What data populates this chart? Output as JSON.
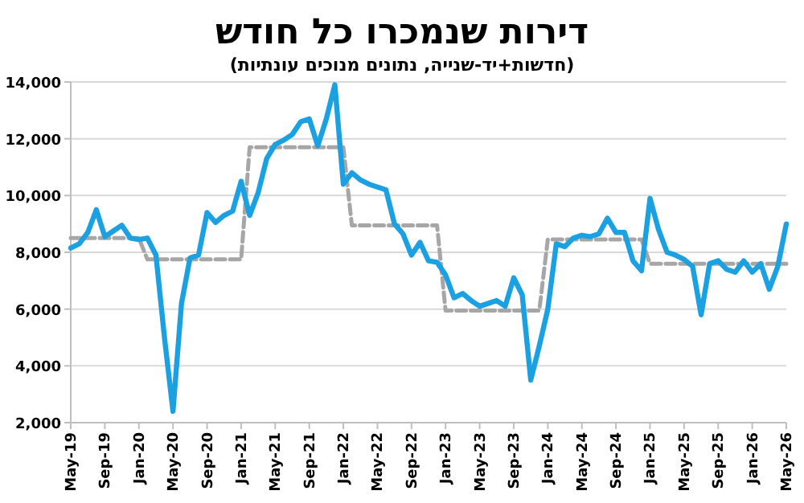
{
  "chart_data": {
    "type": "line",
    "title": "דירות שנמכרו כל חודש",
    "subtitle": "(חדשות+יד-שנייה, נתונים מנוכים עונתיות)",
    "categories": [
      "May-19",
      null,
      null,
      null,
      "Sep-19",
      null,
      null,
      null,
      "Jan-20",
      null,
      null,
      null,
      "May-20",
      null,
      null,
      null,
      "Sep-20",
      null,
      null,
      null,
      "Jan-21",
      null,
      null,
      null,
      "May-21",
      null,
      null,
      null,
      "Sep-21",
      null,
      null,
      null,
      "Jan-22",
      null,
      null,
      null,
      "May-22",
      null,
      null,
      null,
      "Sep-22",
      null,
      null,
      null,
      "Jan-23",
      null,
      null,
      null,
      "May-23",
      null,
      null,
      null,
      "Sep-23",
      null,
      null,
      null,
      "Jan-24",
      null,
      null,
      null,
      "May-24",
      null,
      null,
      null,
      "Sep-24",
      null,
      null,
      null,
      "Jan-25",
      null,
      null,
      null,
      "May-25",
      null,
      null,
      null,
      "Sep-25",
      null,
      null,
      null,
      "Jan-26",
      null,
      null,
      null,
      "May-26"
    ],
    "series": [
      {
        "color": "#a6a6a6",
        "line_style": "dashed",
        "values": [
          8500,
          8500,
          8500,
          8500,
          8500,
          8500,
          8500,
          8500,
          8500,
          7750,
          7750,
          7750,
          7750,
          7750,
          7750,
          7750,
          7750,
          7750,
          7750,
          7750,
          7750,
          11700,
          11700,
          11700,
          11700,
          11700,
          11700,
          11700,
          11700,
          11700,
          11700,
          11700,
          11700,
          8950,
          8950,
          8950,
          8950,
          8950,
          8950,
          8950,
          8950,
          8950,
          8950,
          8950,
          5950,
          5950,
          5950,
          5950,
          5950,
          5950,
          5950,
          5950,
          5950,
          5950,
          5950,
          5950,
          8450,
          8450,
          8450,
          8450,
          8450,
          8450,
          8450,
          8450,
          8450,
          8450,
          8450,
          8450,
          7600,
          7600,
          7600,
          7600,
          7600,
          7600,
          7600,
          7600,
          7600,
          7600,
          7600,
          7600,
          7600,
          7600,
          7600,
          7600,
          7600
        ]
      },
      {
        "color": "#1ba1e2",
        "line_style": "solid",
        "values": [
          8150,
          8300,
          8700,
          9500,
          8550,
          8750,
          8950,
          8500,
          8450,
          8500,
          7900,
          5000,
          2400,
          6200,
          7800,
          7900,
          9400,
          9050,
          9300,
          9450,
          10500,
          9300,
          10100,
          11300,
          11800,
          11950,
          12150,
          12600,
          12700,
          11750,
          12700,
          13900,
          10400,
          10800,
          10550,
          10400,
          10300,
          10200,
          9000,
          8650,
          7900,
          8350,
          7700,
          7650,
          7200,
          6400,
          6550,
          6300,
          6100,
          6200,
          6300,
          6100,
          7100,
          6500,
          3500,
          4700,
          6000,
          8300,
          8200,
          8500,
          8600,
          8550,
          8650,
          9200,
          8700,
          8700,
          7700,
          7350,
          9900,
          8800,
          8000,
          7900,
          7750,
          7500,
          5800,
          7600,
          7700,
          7400,
          7300,
          7700,
          7300,
          7600,
          6700,
          7500,
          9000
        ]
      }
    ],
    "ylim": [
      2000,
      14000
    ],
    "yticks": [
      {
        "value": 2000,
        "label": "2,000"
      },
      {
        "value": 4000,
        "label": "4,000"
      },
      {
        "value": 6000,
        "label": "6,000"
      },
      {
        "value": 8000,
        "label": "8,000"
      },
      {
        "value": 10000,
        "label": "10,000"
      },
      {
        "value": 12000,
        "label": "12,000"
      },
      {
        "value": 14000,
        "label": "14,000"
      }
    ],
    "grid": "y"
  }
}
